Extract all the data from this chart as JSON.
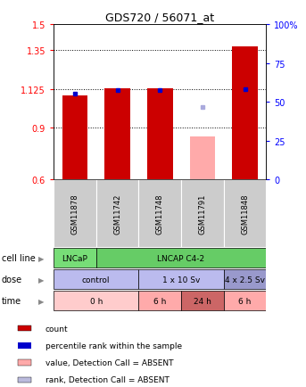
{
  "title": "GDS720 / 56071_at",
  "samples": [
    "GSM11878",
    "GSM11742",
    "GSM11748",
    "GSM11791",
    "GSM11848"
  ],
  "bar_values": [
    1.09,
    1.13,
    1.13,
    null,
    1.37
  ],
  "bar_colors": [
    "#cc0000",
    "#cc0000",
    "#cc0000",
    null,
    "#cc0000"
  ],
  "rank_values": [
    1.1,
    1.12,
    1.12,
    1.02,
    1.125
  ],
  "rank_colors": [
    "#0000cc",
    "#0000cc",
    "#0000cc",
    "#aaaadd",
    "#0000cc"
  ],
  "absent_bar": [
    null,
    null,
    null,
    0.85,
    null
  ],
  "absent_bar_color": "#ffaaaa",
  "ylim_left": [
    0.6,
    1.5
  ],
  "ylim_right": [
    0,
    100
  ],
  "yticks_left": [
    0.6,
    0.9,
    1.125,
    1.35,
    1.5
  ],
  "ytick_labels_left": [
    "0.6",
    "0.9",
    "1.125",
    "1.35",
    "1.5"
  ],
  "yticks_right": [
    0,
    25,
    50,
    75,
    100
  ],
  "ytick_labels_right": [
    "0",
    "25",
    "50",
    "75",
    "100%"
  ],
  "hlines": [
    0.9,
    1.125,
    1.35
  ],
  "cell_segments": [
    {
      "label": "LNCaP",
      "cols": [
        0
      ],
      "color": "#77dd77"
    },
    {
      "label": "LNCAP C4-2",
      "cols": [
        1,
        2,
        3,
        4
      ],
      "color": "#66cc66"
    }
  ],
  "dose_segments": [
    {
      "label": "control",
      "cols": [
        0,
        1
      ],
      "color": "#bbbbee"
    },
    {
      "label": "1 x 10 Sv",
      "cols": [
        2,
        3
      ],
      "color": "#bbbbee"
    },
    {
      "label": "4 x 2.5 Sv",
      "cols": [
        4
      ],
      "color": "#9999cc"
    }
  ],
  "time_segments": [
    {
      "label": "0 h",
      "cols": [
        0,
        1
      ],
      "color": "#ffcccc"
    },
    {
      "label": "6 h",
      "cols": [
        2
      ],
      "color": "#ffaaaa"
    },
    {
      "label": "24 h",
      "cols": [
        3
      ],
      "color": "#cc6666"
    },
    {
      "label": "6 h",
      "cols": [
        4
      ],
      "color": "#ffaaaa"
    }
  ],
  "gsm_bg_color": "#cccccc",
  "row_labels": [
    "cell line",
    "dose",
    "time"
  ],
  "legend_items": [
    {
      "color": "#cc0000",
      "label": "count"
    },
    {
      "color": "#0000cc",
      "label": "percentile rank within the sample"
    },
    {
      "color": "#ffaaaa",
      "label": "value, Detection Call = ABSENT"
    },
    {
      "color": "#bbbbdd",
      "label": "rank, Detection Call = ABSENT"
    }
  ],
  "bar_width": 0.6
}
